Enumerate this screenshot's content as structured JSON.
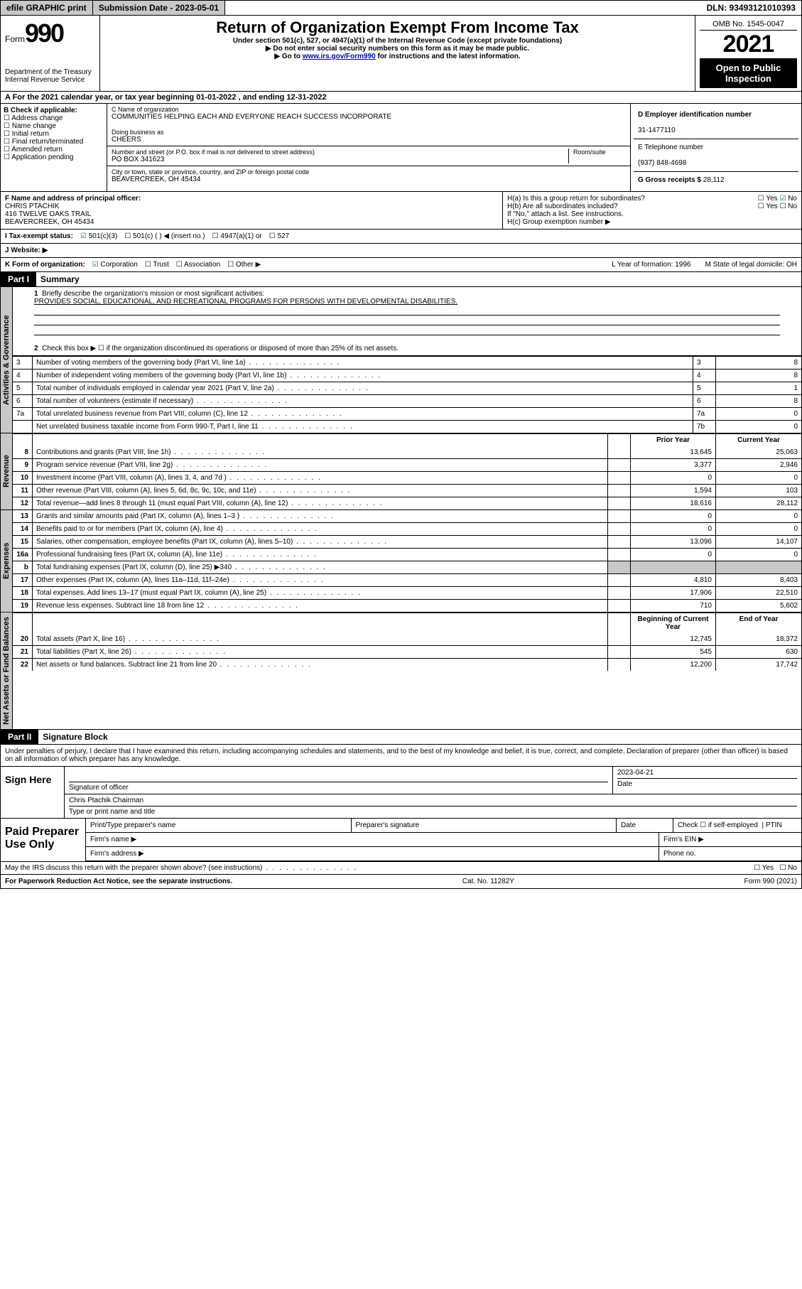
{
  "topbar": {
    "efile": "efile GRAPHIC print",
    "submission_label": "Submission Date - 2023-05-01",
    "dln": "DLN: 93493121010393"
  },
  "header": {
    "form_label": "Form",
    "form_num": "990",
    "dept": "Department of the Treasury",
    "irs": "Internal Revenue Service",
    "title": "Return of Organization Exempt From Income Tax",
    "sub1": "Under section 501(c), 527, or 4947(a)(1) of the Internal Revenue Code (except private foundations)",
    "sub2": "▶ Do not enter social security numbers on this form as it may be made public.",
    "sub3_prefix": "▶ Go to ",
    "sub3_link": "www.irs.gov/Form990",
    "sub3_suffix": " for instructions and the latest information.",
    "omb": "OMB No. 1545-0047",
    "year": "2021",
    "open": "Open to Public Inspection"
  },
  "row_a": "A For the 2021 calendar year, or tax year beginning 01-01-2022   , and ending 12-31-2022",
  "b": {
    "label": "B Check if applicable:",
    "items": [
      "Address change",
      "Name change",
      "Initial return",
      "Final return/terminated",
      "Amended return",
      "Application pending"
    ]
  },
  "c": {
    "name_label": "C Name of organization",
    "name": "COMMUNITIES HELPING EACH AND EVERYONE REACH SUCCESS INCORPORATE",
    "dba_label": "Doing business as",
    "dba": "CHEERS",
    "addr_label": "Number and street (or P.O. box if mail is not delivered to street address)",
    "room_label": "Room/suite",
    "addr": "PO BOX 341623",
    "city_label": "City or town, state or province, country, and ZIP or foreign postal code",
    "city": "BEAVERCREEK, OH  45434"
  },
  "d": {
    "ein_label": "D Employer identification number",
    "ein": "31-1477110",
    "tel_label": "E Telephone number",
    "tel": "(937) 848-4698",
    "gross_label": "G Gross receipts $",
    "gross": "28,112"
  },
  "f": {
    "label": "F  Name and address of principal officer:",
    "name": "CHRIS PTACHIK",
    "addr1": "416 TWELVE OAKS TRAIL",
    "addr2": "BEAVERCREEK, OH  45434"
  },
  "h": {
    "a": "H(a)  Is this a group return for subordinates?",
    "a_yes": "Yes",
    "a_no": "No",
    "b": "H(b)  Are all subordinates included?",
    "b_yes": "Yes",
    "b_no": "No",
    "note": "If \"No,\" attach a list. See instructions.",
    "c": "H(c)  Group exemption number ▶"
  },
  "i": {
    "label": "I   Tax-exempt status:",
    "o1": "501(c)(3)",
    "o2": "501(c) (  ) ◀ (insert no.)",
    "o3": "4947(a)(1) or",
    "o4": "527"
  },
  "j": {
    "label": "J   Website: ▶"
  },
  "k": {
    "label": "K Form of organization:",
    "o1": "Corporation",
    "o2": "Trust",
    "o3": "Association",
    "o4": "Other ▶",
    "l": "L Year of formation: 1996",
    "m": "M State of legal domicile: OH"
  },
  "part1": {
    "head": "Part I",
    "title": "Summary",
    "q1": "Briefly describe the organization's mission or most significant activities:",
    "mission": "PROVIDES SOCIAL, EDUCATIONAL, AND RECREATIONAL PROGRAMS FOR PERSONS WITH DEVELOPMENTAL DISABILITIES.",
    "q2": "Check this box ▶ ☐  if the organization discontinued its operations or disposed of more than 25% of its net assets.",
    "hd_prior": "Prior Year",
    "hd_curr": "Current Year",
    "hd_boy": "Beginning of Current Year",
    "hd_eoy": "End of Year"
  },
  "tabs": {
    "gov": "Activities & Governance",
    "rev": "Revenue",
    "exp": "Expenses",
    "net": "Net Assets or Fund Balances"
  },
  "gov_lines": [
    {
      "n": "3",
      "t": "Number of voting members of the governing body (Part VI, line 1a)",
      "c": "3",
      "v": "8"
    },
    {
      "n": "4",
      "t": "Number of independent voting members of the governing body (Part VI, line 1b)",
      "c": "4",
      "v": "8"
    },
    {
      "n": "5",
      "t": "Total number of individuals employed in calendar year 2021 (Part V, line 2a)",
      "c": "5",
      "v": "1"
    },
    {
      "n": "6",
      "t": "Total number of volunteers (estimate if necessary)",
      "c": "6",
      "v": "8"
    },
    {
      "n": "7a",
      "t": "Total unrelated business revenue from Part VIII, column (C), line 12",
      "c": "7a",
      "v": "0"
    },
    {
      "n": "",
      "t": "Net unrelated business taxable income from Form 990-T, Part I, line 11",
      "c": "7b",
      "v": "0"
    }
  ],
  "rev_lines": [
    {
      "n": "8",
      "t": "Contributions and grants (Part VIII, line 1h)",
      "py": "13,645",
      "cy": "25,063"
    },
    {
      "n": "9",
      "t": "Program service revenue (Part VIII, line 2g)",
      "py": "3,377",
      "cy": "2,946"
    },
    {
      "n": "10",
      "t": "Investment income (Part VIII, column (A), lines 3, 4, and 7d )",
      "py": "0",
      "cy": "0"
    },
    {
      "n": "11",
      "t": "Other revenue (Part VIII, column (A), lines 5, 6d, 8c, 9c, 10c, and 11e)",
      "py": "1,594",
      "cy": "103"
    },
    {
      "n": "12",
      "t": "Total revenue—add lines 8 through 11 (must equal Part VIII, column (A), line 12)",
      "py": "18,616",
      "cy": "28,112"
    }
  ],
  "exp_lines": [
    {
      "n": "13",
      "t": "Grants and similar amounts paid (Part IX, column (A), lines 1–3 )",
      "py": "0",
      "cy": "0"
    },
    {
      "n": "14",
      "t": "Benefits paid to or for members (Part IX, column (A), line 4)",
      "py": "0",
      "cy": "0"
    },
    {
      "n": "15",
      "t": "Salaries, other compensation, employee benefits (Part IX, column (A), lines 5–10)",
      "py": "13,096",
      "cy": "14,107"
    },
    {
      "n": "16a",
      "t": "Professional fundraising fees (Part IX, column (A), line 11e)",
      "py": "0",
      "cy": "0"
    },
    {
      "n": "b",
      "t": "Total fundraising expenses (Part IX, column (D), line 25) ▶340",
      "py": "",
      "cy": "",
      "shade": true
    },
    {
      "n": "17",
      "t": "Other expenses (Part IX, column (A), lines 11a–11d, 11f–24e)",
      "py": "4,810",
      "cy": "8,403"
    },
    {
      "n": "18",
      "t": "Total expenses. Add lines 13–17 (must equal Part IX, column (A), line 25)",
      "py": "17,906",
      "cy": "22,510"
    },
    {
      "n": "19",
      "t": "Revenue less expenses. Subtract line 18 from line 12",
      "py": "710",
      "cy": "5,602"
    }
  ],
  "net_lines": [
    {
      "n": "20",
      "t": "Total assets (Part X, line 16)",
      "py": "12,745",
      "cy": "18,372"
    },
    {
      "n": "21",
      "t": "Total liabilities (Part X, line 26)",
      "py": "545",
      "cy": "630"
    },
    {
      "n": "22",
      "t": "Net assets or fund balances. Subtract line 21 from line 20",
      "py": "12,200",
      "cy": "17,742"
    }
  ],
  "part2": {
    "head": "Part II",
    "title": "Signature Block",
    "intro": "Under penalties of perjury, I declare that I have examined this return, including accompanying schedules and statements, and to the best of my knowledge and belief, it is true, correct, and complete. Declaration of preparer (other than officer) is based on all information of which preparer has any knowledge."
  },
  "sign": {
    "label": "Sign Here",
    "sig_label": "Signature of officer",
    "date_label": "Date",
    "date": "2023-04-21",
    "name": "Chris Ptachik  Chairman",
    "name_label": "Type or print name and title"
  },
  "paid": {
    "label": "Paid Preparer Use Only",
    "c1": "Print/Type preparer's name",
    "c2": "Preparer's signature",
    "c3": "Date",
    "c4a": "Check ☐ if self-employed",
    "c4b": "PTIN",
    "firm_name": "Firm's name   ▶",
    "firm_ein": "Firm's EIN ▶",
    "firm_addr": "Firm's address ▶",
    "phone": "Phone no."
  },
  "may": {
    "text": "May the IRS discuss this return with the preparer shown above? (see instructions)",
    "yes": "Yes",
    "no": "No"
  },
  "footer": {
    "left": "For Paperwork Reduction Act Notice, see the separate instructions.",
    "mid": "Cat. No. 11282Y",
    "right": "Form 990 (2021)"
  },
  "colors": {
    "link": "#0000cc",
    "check": "#0a7a2a",
    "shade": "#c8c8c8"
  }
}
